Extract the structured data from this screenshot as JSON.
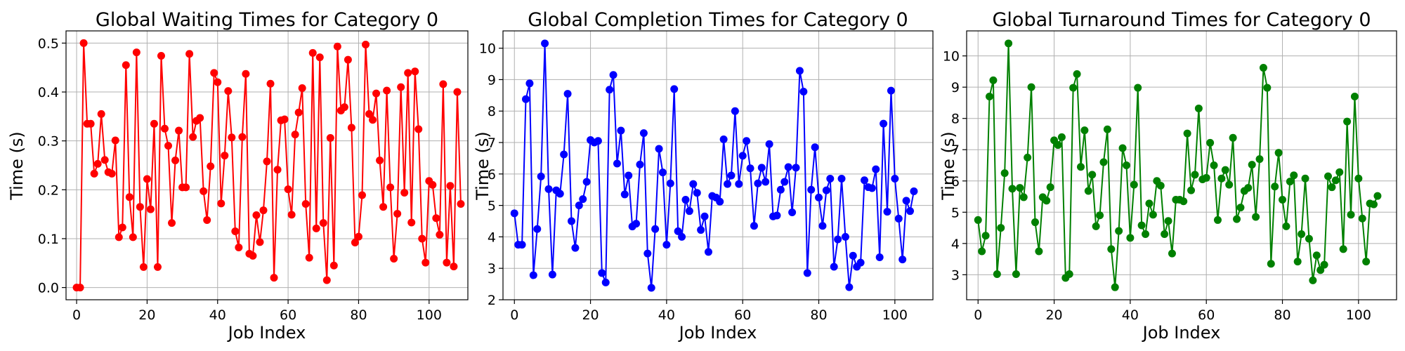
{
  "chart_data": [
    {
      "type": "line",
      "title": "Global Waiting Times for Category 0",
      "xlabel": "Job Index",
      "ylabel": "Time (s)",
      "xlim": [
        -3,
        111
      ],
      "ylim": [
        -0.025,
        0.525
      ],
      "xticks": [
        0,
        20,
        40,
        60,
        80,
        100
      ],
      "yticks": [
        0.0,
        0.1,
        0.2,
        0.3,
        0.4,
        0.5
      ],
      "ytick_labels": [
        "0.0",
        "0.1",
        "0.2",
        "0.3",
        "0.4",
        "0.5"
      ],
      "grid": true,
      "color": "#ff0000",
      "values": [
        0.0,
        0.0,
        0.5,
        0.335,
        0.335,
        0.233,
        0.253,
        0.355,
        0.261,
        0.236,
        0.233,
        0.301,
        0.103,
        0.123,
        0.455,
        0.185,
        0.103,
        0.481,
        0.165,
        0.042,
        0.222,
        0.16,
        0.335,
        0.042,
        0.474,
        0.325,
        0.29,
        0.132,
        0.26,
        0.321,
        0.205,
        0.205,
        0.478,
        0.308,
        0.341,
        0.347,
        0.197,
        0.138,
        0.248,
        0.439,
        0.42,
        0.172,
        0.27,
        0.402,
        0.307,
        0.115,
        0.082,
        0.308,
        0.437,
        0.069,
        0.065,
        0.148,
        0.093,
        0.158,
        0.258,
        0.417,
        0.02,
        0.241,
        0.342,
        0.344,
        0.201,
        0.149,
        0.313,
        0.358,
        0.408,
        0.171,
        0.061,
        0.48,
        0.121,
        0.471,
        0.132,
        0.015,
        0.306,
        0.045,
        0.493,
        0.362,
        0.369,
        0.466,
        0.327,
        0.092,
        0.104,
        0.189,
        0.497,
        0.355,
        0.343,
        0.397,
        0.26,
        0.165,
        0.403,
        0.205,
        0.059,
        0.151,
        0.41,
        0.194,
        0.439,
        0.133,
        0.442,
        0.324,
        0.1,
        0.051,
        0.218,
        0.21,
        0.142,
        0.108,
        0.416,
        0.051,
        0.208,
        0.043,
        0.4,
        0.171
      ]
    },
    {
      "type": "line",
      "title": "Global Completion Times for Category 0",
      "xlabel": "Job Index",
      "ylabel": "Time (s)",
      "xlim": [
        -3,
        110
      ],
      "ylim": [
        2.0,
        10.55
      ],
      "xticks": [
        0,
        20,
        40,
        60,
        80,
        100
      ],
      "yticks": [
        2,
        3,
        4,
        5,
        6,
        7,
        8,
        9,
        10
      ],
      "ytick_labels": [
        "2",
        "3",
        "4",
        "5",
        "6",
        "7",
        "8",
        "9",
        "10"
      ],
      "grid": true,
      "color": "#0000ff",
      "values": [
        4.75,
        3.75,
        3.75,
        8.38,
        8.88,
        2.78,
        4.25,
        5.92,
        10.15,
        5.52,
        2.8,
        5.48,
        5.37,
        6.62,
        8.55,
        4.5,
        3.65,
        5.0,
        5.2,
        5.75,
        7.08,
        7.0,
        7.05,
        2.85,
        2.55,
        8.68,
        9.15,
        6.33,
        7.38,
        5.35,
        5.95,
        4.33,
        4.42,
        6.3,
        7.3,
        3.47,
        2.38,
        4.25,
        6.8,
        6.05,
        3.75,
        5.7,
        8.7,
        4.18,
        4.0,
        5.18,
        4.82,
        5.68,
        5.4,
        4.22,
        4.65,
        3.52,
        5.3,
        5.25,
        5.12,
        7.1,
        5.68,
        5.95,
        8.0,
        5.68,
        6.58,
        7.05,
        6.18,
        4.35,
        5.7,
        6.2,
        5.75,
        6.95,
        4.65,
        4.68,
        5.5,
        5.75,
        6.22,
        4.78,
        6.2,
        9.28,
        8.62,
        2.85,
        5.5,
        6.85,
        5.25,
        4.35,
        5.48,
        5.85,
        3.05,
        3.92,
        5.85,
        4.0,
        2.4,
        3.4,
        3.05,
        3.18,
        5.8,
        5.58,
        5.55,
        6.15,
        3.35,
        7.6,
        4.8,
        8.65,
        5.85,
        4.58,
        3.28,
        5.15,
        4.82,
        5.45
      ]
    },
    {
      "type": "line",
      "title": "Global Turnaround Times for Category 0",
      "xlabel": "Job Index",
      "ylabel": "Time (s)",
      "xlim": [
        -3,
        110
      ],
      "ylim": [
        2.2,
        10.8
      ],
      "xticks": [
        0,
        20,
        40,
        60,
        80,
        100
      ],
      "yticks": [
        3,
        4,
        5,
        6,
        7,
        8,
        9,
        10
      ],
      "ytick_labels": [
        "3",
        "4",
        "5",
        "6",
        "7",
        "8",
        "9",
        "10"
      ],
      "grid": true,
      "color": "#008000",
      "values": [
        4.75,
        3.75,
        4.25,
        8.7,
        9.22,
        3.02,
        4.5,
        6.25,
        10.4,
        5.75,
        3.02,
        5.78,
        5.48,
        6.75,
        9.0,
        4.68,
        3.75,
        5.48,
        5.37,
        5.8,
        7.3,
        7.15,
        7.4,
        2.9,
        3.02,
        8.98,
        9.42,
        6.45,
        7.62,
        5.68,
        6.2,
        4.55,
        4.9,
        6.6,
        7.65,
        3.82,
        2.6,
        4.4,
        7.05,
        6.5,
        4.18,
        5.88,
        8.98,
        4.58,
        4.3,
        5.28,
        4.92,
        6.0,
        5.85,
        4.3,
        4.72,
        3.68,
        5.4,
        5.4,
        5.35,
        7.52,
        5.7,
        6.2,
        8.32,
        6.05,
        6.1,
        7.22,
        6.5,
        4.75,
        6.08,
        6.35,
        5.88,
        7.38,
        4.78,
        5.15,
        5.68,
        5.78,
        6.52,
        4.85,
        6.7,
        9.62,
        8.98,
        3.35,
        5.82,
        6.9,
        5.4,
        4.55,
        5.98,
        6.18,
        3.42,
        4.3,
        6.08,
        4.15,
        2.82,
        3.62,
        3.15,
        3.32,
        6.15,
        5.8,
        6.02,
        6.28,
        3.82,
        7.9,
        4.92,
        8.7,
        6.08,
        4.8,
        3.42,
        5.28,
        5.25,
        5.52
      ]
    }
  ]
}
